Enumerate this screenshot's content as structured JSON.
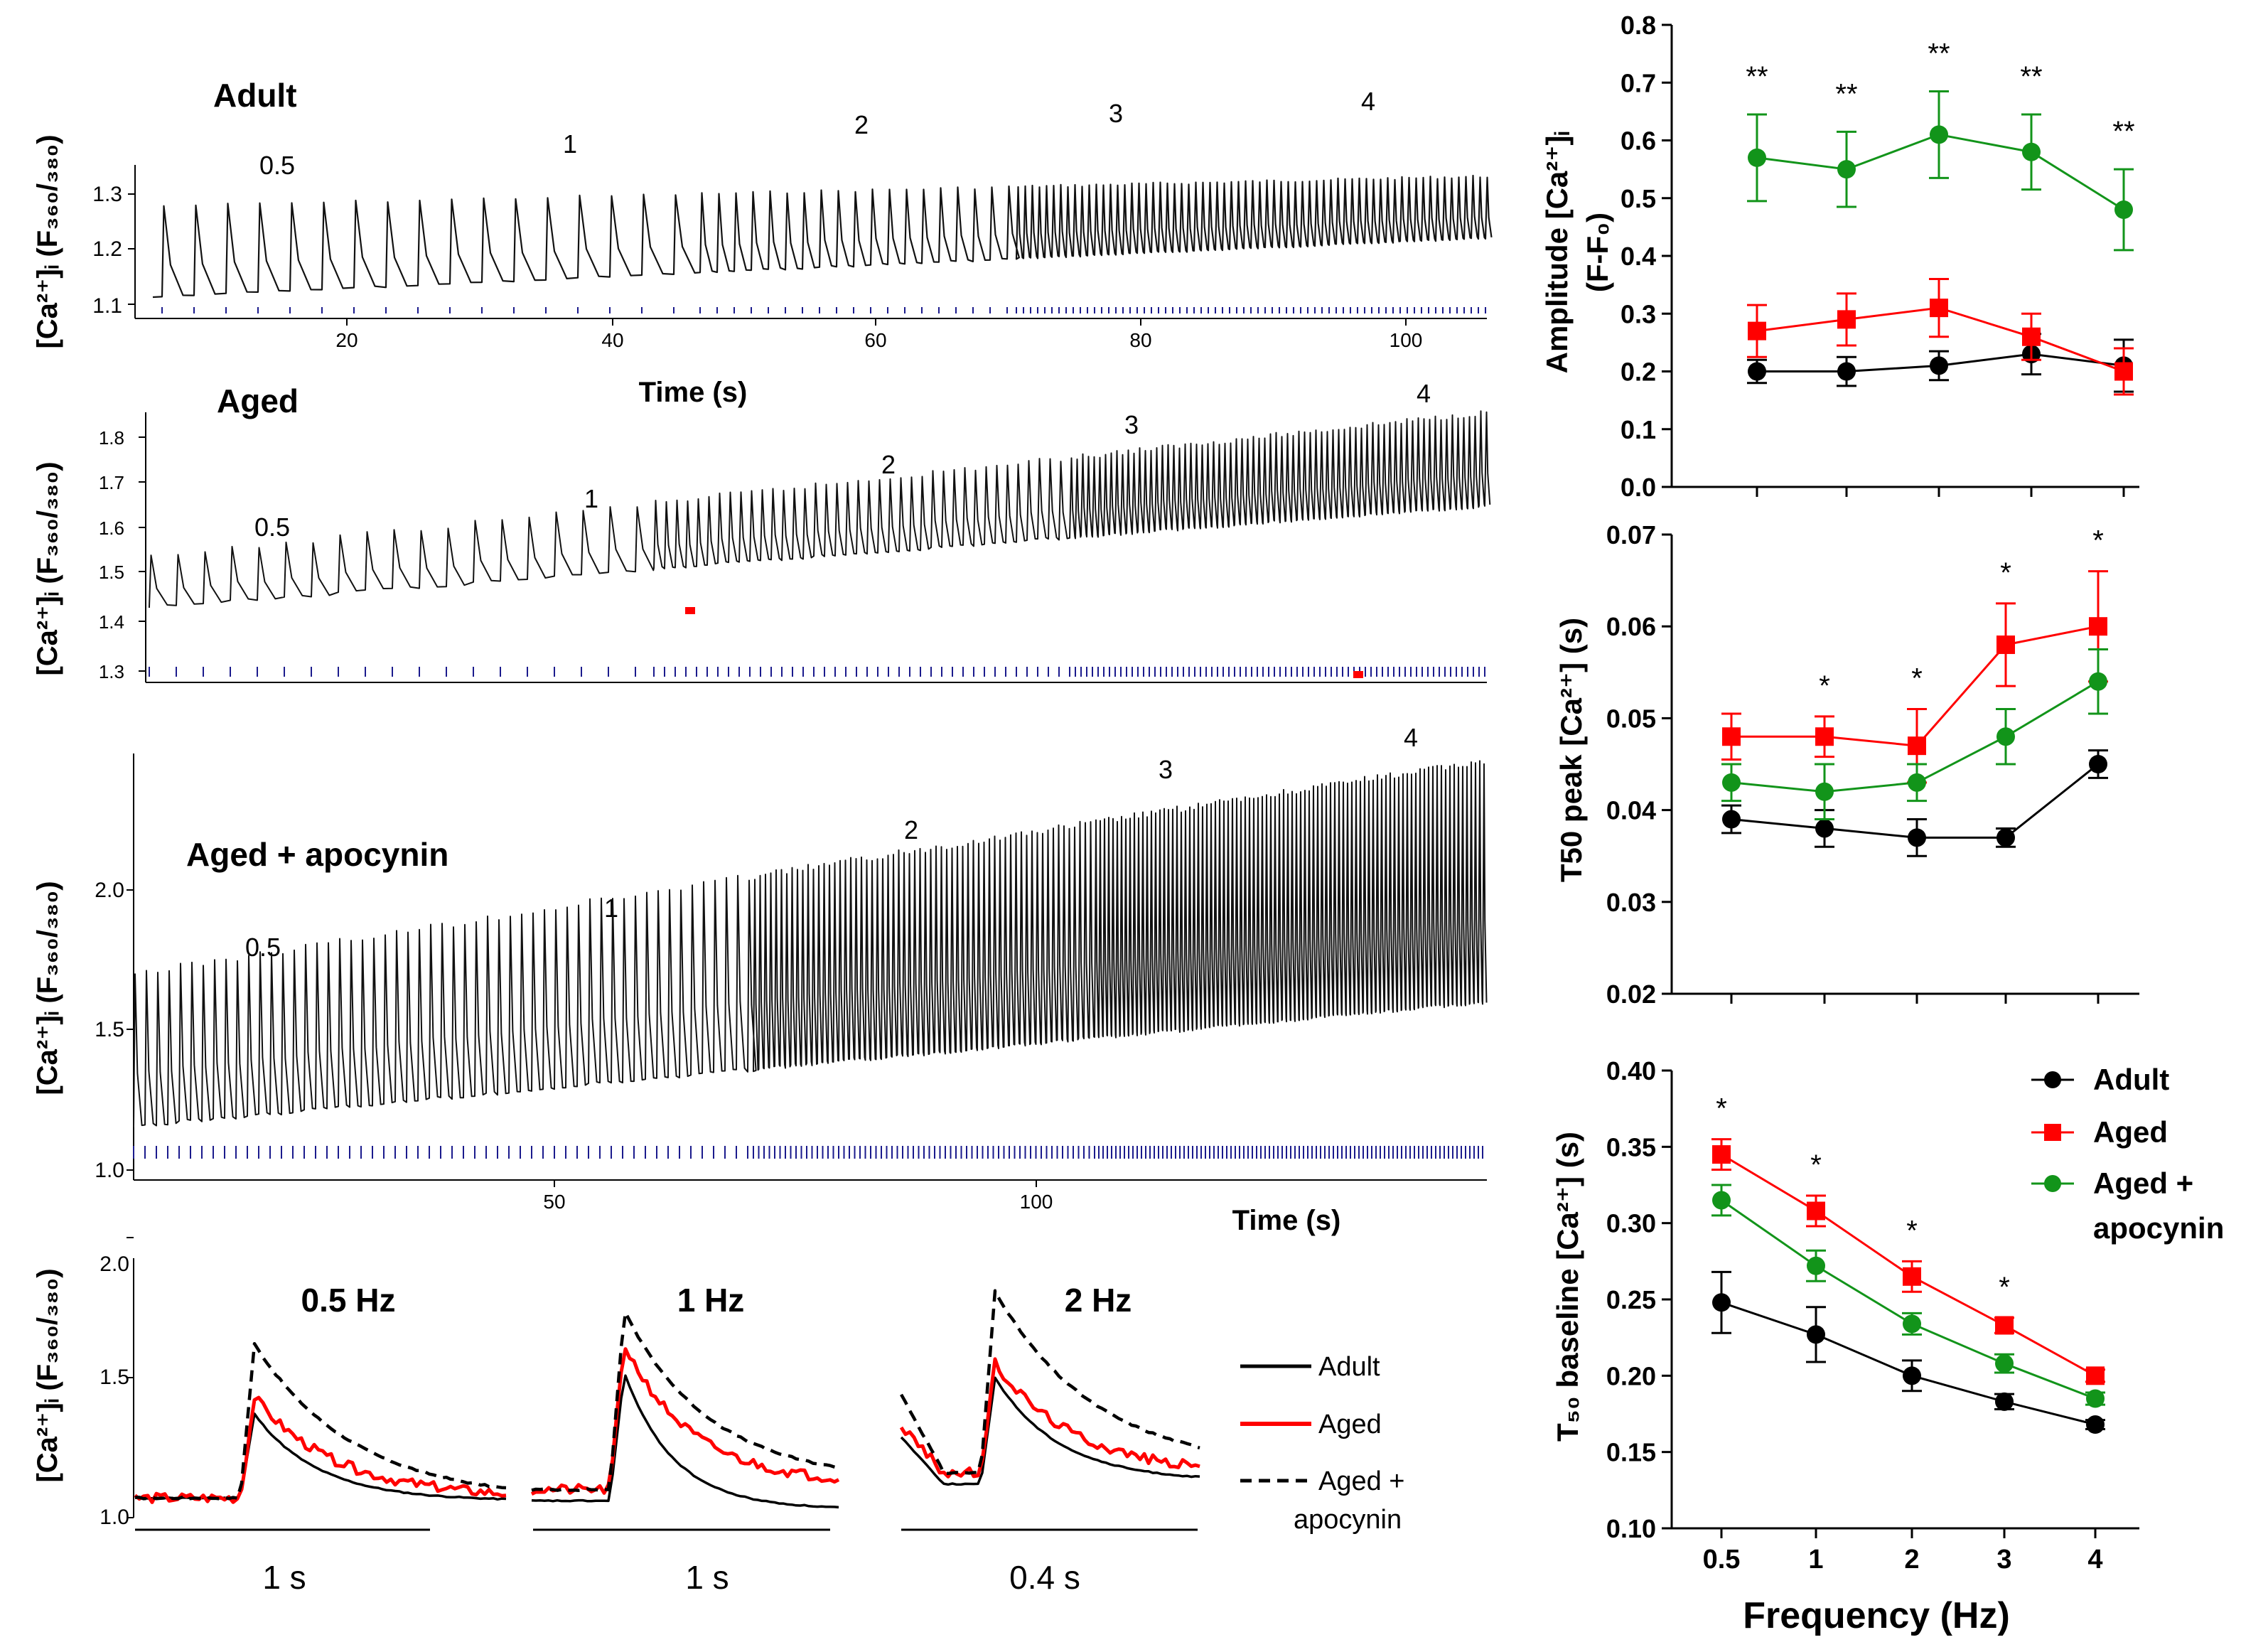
{
  "colors": {
    "adult": "#000000",
    "aged": "#ff0000",
    "apocynin": "#12941a",
    "stim": "#1a1a8c"
  },
  "traces": [
    {
      "group": "Adult",
      "ylabel": "[Ca²⁺]ᵢ (F₃₆₀/₃₈₀)",
      "yticks": [
        "1.1",
        "1.2",
        "1.3"
      ],
      "xticks": [
        "20",
        "40",
        "60",
        "80",
        "100"
      ],
      "xlabel": "Time (s)",
      "freq_labels": [
        "0.5",
        "1",
        "2",
        "3",
        "4"
      ]
    },
    {
      "group": "Aged",
      "ylabel": "[Ca²⁺]ᵢ (F₃₆₀/₃₈₀)",
      "yticks": [
        "1.3",
        "1.4",
        "1.5",
        "1.6",
        "1.7",
        "1.8"
      ],
      "xticks": [],
      "xlabel": "",
      "freq_labels": [
        "0.5",
        "1",
        "2",
        "3",
        "4"
      ]
    },
    {
      "group": "Aged + apocynin",
      "ylabel": "[Ca²⁺]ᵢ (F₃₆₀/₃₈₀)",
      "yticks": [
        "1.0",
        "1.5",
        "2.0"
      ],
      "xticks": [
        "50",
        "100"
      ],
      "xlabel": "Time (s)",
      "freq_labels": [
        "0.5",
        "1",
        "2",
        "3",
        "4"
      ]
    }
  ],
  "transients": {
    "ylabel": "[Ca²⁺]ᵢ (F₃₆₀/₃₈₀)",
    "yticks": [
      "1.0",
      "1.5",
      "2.0"
    ],
    "panels": [
      {
        "title": "0.5 Hz",
        "scale": "1 s",
        "peaks": {
          "adult": 1.37,
          "aged": 1.43,
          "apocynin": 1.62
        }
      },
      {
        "title": "1 Hz",
        "scale": "1 s",
        "peaks": {
          "adult": 1.52,
          "aged": 1.62,
          "apocynin": 1.74
        }
      },
      {
        "title": "2 Hz",
        "scale": "0.4 s",
        "peaks": {
          "adult": 1.5,
          "aged": 1.55,
          "apocynin": 1.81
        }
      }
    ],
    "legend": {
      "adult": "Adult",
      "aged": "Aged",
      "apocynin_1": "Aged +",
      "apocynin_2": "apocynin"
    }
  },
  "chart_data": [
    {
      "type": "line",
      "title": "",
      "categories": [
        "0.5",
        "1",
        "2",
        "3",
        "4"
      ],
      "ylabel_1": "Amplitude [Ca²⁺]ᵢ",
      "ylabel_2": "(F-F₀)",
      "xlabel": "",
      "ylim": [
        0,
        0.8
      ],
      "yticks": [
        "0.0",
        "0.1",
        "0.2",
        "0.3",
        "0.4",
        "0.5",
        "0.6",
        "0.7",
        "0.8"
      ],
      "series": [
        {
          "name": "Adult",
          "key": "adult",
          "values": [
            0.2,
            0.2,
            0.21,
            0.23,
            0.21
          ],
          "err": [
            0.02,
            0.025,
            0.025,
            0.035,
            0.045
          ]
        },
        {
          "name": "Aged",
          "key": "aged",
          "values": [
            0.27,
            0.29,
            0.31,
            0.26,
            0.2
          ],
          "err": [
            0.045,
            0.045,
            0.05,
            0.04,
            0.04
          ]
        },
        {
          "name": "Aged + apocynin",
          "key": "apocynin",
          "values": [
            0.57,
            0.55,
            0.61,
            0.58,
            0.48
          ],
          "err": [
            0.075,
            0.065,
            0.075,
            0.065,
            0.07
          ]
        }
      ],
      "annotations": [
        "**",
        "**",
        "**",
        "**",
        "**"
      ]
    },
    {
      "type": "line",
      "title": "",
      "categories": [
        "0.5",
        "1",
        "2",
        "3",
        "4"
      ],
      "ylabel_1": "T50 peak [Ca²⁺] (s)",
      "ylabel_2": "",
      "xlabel": "",
      "ylim": [
        0.02,
        0.07
      ],
      "yticks": [
        "0.02",
        "0.03",
        "0.04",
        "0.05",
        "0.06",
        "0.07"
      ],
      "series": [
        {
          "name": "Adult",
          "key": "adult",
          "values": [
            0.039,
            0.038,
            0.037,
            0.037,
            0.045
          ],
          "err": [
            0.0015,
            0.002,
            0.002,
            0.001,
            0.0015
          ]
        },
        {
          "name": "Aged",
          "key": "aged",
          "values": [
            0.048,
            0.048,
            0.047,
            0.058,
            0.06
          ],
          "err": [
            0.0025,
            0.0022,
            0.004,
            0.0045,
            0.006
          ]
        },
        {
          "name": "Aged + apocynin",
          "key": "apocynin",
          "values": [
            0.043,
            0.042,
            0.043,
            0.048,
            0.054
          ],
          "err": [
            0.002,
            0.003,
            0.002,
            0.003,
            0.0035
          ]
        }
      ],
      "annotations": [
        "",
        "*",
        "*",
        "*",
        "*"
      ]
    },
    {
      "type": "line",
      "title": "",
      "categories": [
        "0.5",
        "1",
        "2",
        "3",
        "4"
      ],
      "ylabel_1": "T₅₀ baseline [Ca²⁺] (s)",
      "ylabel_2": "",
      "xlabel": "Frequency (Hz)",
      "ylim": [
        0.1,
        0.4
      ],
      "yticks": [
        "0.10",
        "0.15",
        "0.20",
        "0.25",
        "0.30",
        "0.35",
        "0.40"
      ],
      "series": [
        {
          "name": "Adult",
          "key": "adult",
          "values": [
            0.248,
            0.227,
            0.2,
            0.183,
            0.168
          ],
          "err": [
            0.02,
            0.018,
            0.01,
            0.005,
            0.003
          ]
        },
        {
          "name": "Aged",
          "key": "aged",
          "values": [
            0.345,
            0.308,
            0.265,
            0.233,
            0.2
          ],
          "err": [
            0.01,
            0.01,
            0.01,
            0.005,
            0.004
          ]
        },
        {
          "name": "Aged + apocynin",
          "key": "apocynin",
          "values": [
            0.315,
            0.272,
            0.234,
            0.208,
            0.185
          ],
          "err": [
            0.01,
            0.01,
            0.007,
            0.006,
            0.004
          ]
        }
      ],
      "annotations": [
        "*",
        "*",
        "*",
        "*",
        ""
      ],
      "legend": {
        "adult": "Adult",
        "aged": "Aged",
        "apocynin_1": "Aged +",
        "apocynin_2": "apocynin"
      }
    }
  ]
}
